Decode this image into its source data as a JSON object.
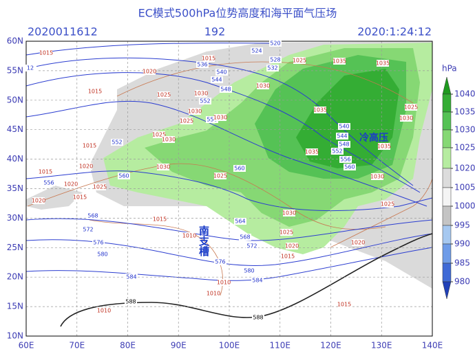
{
  "header": {
    "title": "EC模式500hPa位势高度和海平面气压场",
    "run": "2020011612",
    "forecast_hour": "192",
    "valid_time": "2020:1:24:12"
  },
  "axes": {
    "x_labels": [
      "60E",
      "70E",
      "80E",
      "90E",
      "100E",
      "110E",
      "120E",
      "130E",
      "140E"
    ],
    "y_labels": [
      "10N",
      "15N",
      "20N",
      "25N",
      "30N",
      "35N",
      "40N",
      "45N",
      "50N",
      "55N",
      "60N"
    ]
  },
  "colorbar": {
    "unit": "hPa",
    "levels": [
      1040,
      1035,
      1030,
      1025,
      1020,
      1005,
      1000,
      995,
      990,
      985,
      980
    ],
    "colors": [
      "#1f9a1f",
      "#34ad34",
      "#55c255",
      "#86d874",
      "#b6eca0",
      "#dcdcdc",
      "#f4f4f4",
      "#c4c4c4",
      "#a6c8f0",
      "#6e9ce8",
      "#3f6ad6",
      "#2040b8"
    ]
  },
  "height_contours": {
    "labels": [
      520,
      524,
      528,
      532,
      536,
      540,
      544,
      548,
      552,
      556,
      552,
      560,
      556,
      564,
      568,
      568,
      572,
      572,
      576,
      576,
      580,
      580,
      584,
      584,
      560,
      540,
      544,
      548,
      552,
      556,
      560,
      12
    ]
  },
  "ridge_588": {
    "labels": [
      588,
      588
    ]
  },
  "sea_level_pressure": {
    "labels": [
      1035,
      1035,
      1025,
      1030,
      1035,
      1035,
      1035,
      1030,
      1025,
      1030,
      1025,
      1020,
      1015,
      1030,
      1025,
      1020,
      1015,
      1010,
      1010,
      1015,
      1020,
      1015,
      1025,
      1030,
      1030,
      1025,
      1030,
      1025,
      1030,
      1015,
      1020,
      1030,
      1025,
      1015,
      1020,
      1025,
      1020,
      1015,
      1015,
      1010,
      1010,
      1015
    ]
  },
  "annotations": {
    "cold_high": "冷高压",
    "trough": "南支槽"
  }
}
